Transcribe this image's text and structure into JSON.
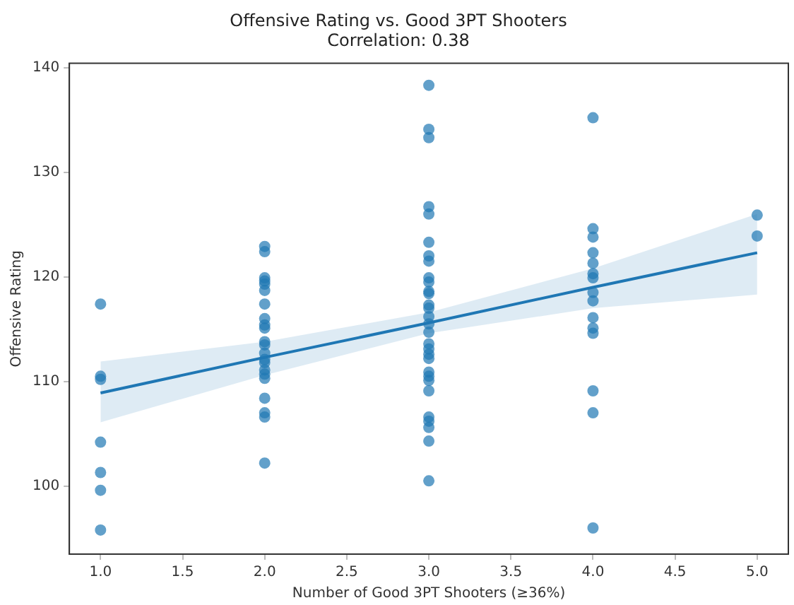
{
  "chart_data": {
    "type": "scatter",
    "title": "Offensive Rating vs. Good 3PT Shooters",
    "subtitle": "Correlation: 0.38",
    "xlabel": "Number of Good 3PT Shooters (≥36%)",
    "ylabel": "Offensive Rating",
    "xlim": [
      0.81,
      5.19
    ],
    "xticks": [
      {
        "value": 1,
        "label": "1.0"
      },
      {
        "value": 1.5,
        "label": "1.5"
      },
      {
        "value": 2,
        "label": "2.0"
      },
      {
        "value": 2.5,
        "label": "2.5"
      },
      {
        "value": 3,
        "label": "3.0"
      },
      {
        "value": 3.5,
        "label": "3.5"
      },
      {
        "value": 4,
        "label": "4.0"
      },
      {
        "value": 4.5,
        "label": "4.5"
      },
      {
        "value": 5,
        "label": "5.0"
      }
    ],
    "ylim": [
      93.5,
      140.4
    ],
    "yticks": [
      100,
      110,
      120,
      130,
      140
    ],
    "grid": false,
    "legend": false,
    "marker": "circle",
    "series": [
      {
        "type": "scatter",
        "color": "#1f77b4",
        "x": [
          1,
          1,
          1,
          1,
          1,
          1,
          1,
          2,
          2,
          2,
          2,
          2,
          2,
          2,
          2,
          2,
          2,
          2,
          2,
          2,
          2,
          2,
          2,
          2,
          2,
          2,
          2,
          2,
          2,
          3,
          3,
          3,
          3,
          3,
          3,
          3,
          3,
          3,
          3,
          3,
          3,
          3,
          3,
          3,
          3,
          3,
          3,
          3,
          3,
          3,
          3,
          3,
          3,
          3,
          3,
          3,
          3,
          3,
          3,
          4,
          4,
          4,
          4,
          4,
          4,
          4,
          4,
          4,
          4,
          4,
          4,
          4,
          4,
          4,
          5,
          5
        ],
        "values": [
          117.4,
          110.5,
          110.2,
          104.2,
          101.3,
          99.6,
          95.8,
          122.9,
          122.4,
          119.9,
          119.6,
          119.3,
          118.7,
          117.4,
          116,
          115.4,
          115.1,
          113.8,
          113.5,
          112.7,
          112.1,
          111.8,
          111.1,
          110.7,
          110.3,
          108.4,
          107,
          106.6,
          102.2,
          138.3,
          134.1,
          133.3,
          126.7,
          126,
          123.3,
          122,
          121.5,
          119.9,
          119.5,
          118.6,
          118.4,
          117.3,
          117,
          116.2,
          115.5,
          114.7,
          113.6,
          113.1,
          112.6,
          112.2,
          110.9,
          110.5,
          110.1,
          109.1,
          106.6,
          106.2,
          105.6,
          104.3,
          100.5,
          135.2,
          124.6,
          123.8,
          122.3,
          121.3,
          120.3,
          119.9,
          118.5,
          117.7,
          116.1,
          115.1,
          114.6,
          109.1,
          107,
          96,
          125.9,
          123.9
        ]
      },
      {
        "type": "line",
        "color": "#1f77b4",
        "marker": "none",
        "x": [
          1,
          2,
          3,
          4,
          5
        ],
        "values": [
          108.9,
          112.3,
          115.6,
          119.0,
          122.3
        ],
        "lower": [
          106.1,
          110.6,
          114.6,
          117,
          118.3
        ],
        "upper": [
          111.9,
          113.8,
          116.6,
          120.8,
          126
        ]
      }
    ]
  }
}
